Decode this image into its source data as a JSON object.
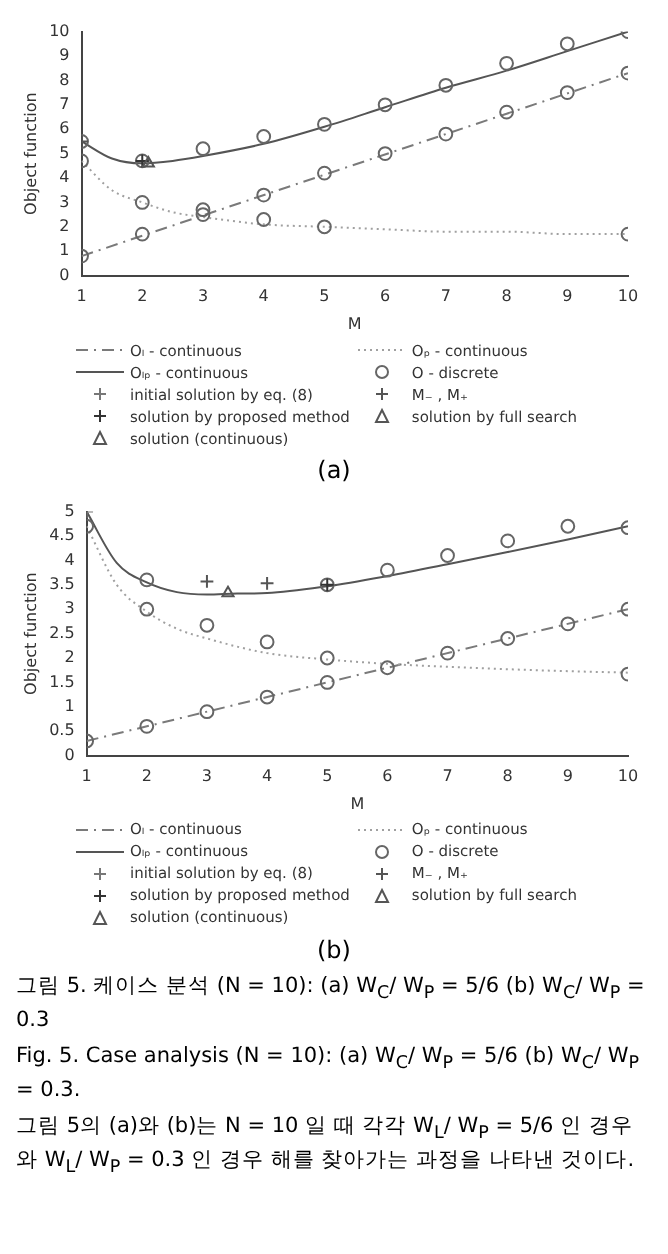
{
  "chart_data": [
    {
      "type": "line",
      "xlabel": "M",
      "ylabel": "Object function",
      "xlim": [
        1,
        10
      ],
      "xticks": [
        1,
        2,
        3,
        4,
        5,
        6,
        7,
        8,
        9,
        10
      ],
      "ylim": [
        0,
        10
      ],
      "yticks": [
        0,
        1,
        2,
        3,
        4,
        5,
        6,
        7,
        8,
        9,
        10
      ],
      "grid": false,
      "legend": "bottom",
      "series": [
        {
          "name": "Oₗ - continuous",
          "type": "line",
          "color": "#7a7a7a",
          "line_style": "dashed",
          "x": [
            1,
            10
          ],
          "values": [
            0.8,
            8.3
          ]
        },
        {
          "name": "Oₚ - continuous",
          "type": "line",
          "color": "#a0a0a0",
          "line_style": "dotted",
          "x": [
            1,
            1.5,
            2,
            2.5,
            3,
            4,
            5,
            6,
            7,
            8,
            9,
            10
          ],
          "values": [
            4.7,
            3.5,
            3.0,
            2.6,
            2.4,
            2.1,
            2.0,
            1.9,
            1.8,
            1.8,
            1.7,
            1.7
          ]
        },
        {
          "name": "Oₗₚ - continuous",
          "type": "line",
          "color": "#555555",
          "line_style": "solid",
          "x": [
            1,
            1.5,
            2,
            2.5,
            3,
            4,
            5,
            6,
            7,
            8,
            9,
            10
          ],
          "values": [
            5.5,
            4.8,
            4.6,
            4.7,
            4.9,
            5.4,
            6.1,
            6.9,
            7.7,
            8.4,
            9.2,
            10.0
          ]
        },
        {
          "name": "O - discrete",
          "type": "scatter",
          "color": "#666666",
          "marker": "circle",
          "x": [
            1,
            2,
            3,
            4,
            5,
            6,
            7,
            8,
            9,
            10,
            1,
            2,
            3,
            4,
            5,
            6,
            7,
            8,
            9,
            10,
            1,
            2,
            3,
            4,
            5,
            6,
            7,
            8,
            9,
            10
          ],
          "values": [
            0.8,
            1.7,
            2.5,
            3.3,
            4.2,
            5,
            5.8,
            6.7,
            7.5,
            8.3,
            4.7,
            3,
            2.7,
            2.3,
            2,
            null,
            null,
            null,
            null,
            1.7,
            5.5,
            4.7,
            5.2,
            5.7,
            6.2,
            7,
            7.8,
            8.7,
            9.5,
            10
          ]
        },
        {
          "name": "initial solution by eq. (8)",
          "type": "scatter",
          "color": "#777777",
          "marker": "cross"
        },
        {
          "name": "M₋ , M₊",
          "type": "scatter",
          "color": "#555555",
          "marker": "cross",
          "x": [
            1
          ],
          "values": [
            5.5
          ]
        },
        {
          "name": "solution by proposed method",
          "type": "scatter",
          "color": "#333333",
          "marker": "cross",
          "x": [
            2
          ],
          "values": [
            4.7
          ]
        },
        {
          "name": "solution by full search",
          "type": "scatter",
          "color": "#555555",
          "marker": "triangle"
        },
        {
          "name": "solution (continuous)",
          "type": "scatter",
          "color": "#555555",
          "marker": "triangle",
          "x": [
            2.1
          ],
          "values": [
            4.6
          ]
        }
      ],
      "annotations": [
        "(a)"
      ]
    },
    {
      "type": "line",
      "xlabel": "M",
      "ylabel": "Object function",
      "xlim": [
        1,
        10
      ],
      "xticks": [
        1,
        2,
        3,
        4,
        5,
        6,
        7,
        8,
        9,
        10
      ],
      "ylim": [
        0,
        5
      ],
      "yticks": [
        0,
        0.5,
        1,
        1.5,
        2,
        2.5,
        3,
        3.5,
        4,
        4.5,
        5
      ],
      "grid": false,
      "legend": "bottom",
      "series": [
        {
          "name": "Oₗ - continuous",
          "type": "line",
          "color": "#7a7a7a",
          "line_style": "dashed",
          "x": [
            1,
            10
          ],
          "values": [
            0.3,
            3.0
          ]
        },
        {
          "name": "Oₚ - continuous",
          "type": "line",
          "color": "#a0a0a0",
          "line_style": "dotted",
          "x": [
            1,
            1.5,
            2,
            2.5,
            3,
            4,
            5,
            6,
            7,
            8,
            9,
            10
          ],
          "values": [
            4.7,
            3.5,
            2.95,
            2.6,
            2.4,
            2.1,
            1.97,
            1.88,
            1.82,
            1.77,
            1.73,
            1.7
          ]
        },
        {
          "name": "Oₗₚ - continuous",
          "type": "line",
          "color": "#555555",
          "line_style": "solid",
          "x": [
            1,
            1.5,
            2,
            2.5,
            3,
            3.5,
            4,
            5,
            6,
            7,
            8,
            9,
            10
          ],
          "values": [
            5.0,
            3.95,
            3.55,
            3.35,
            3.3,
            3.32,
            3.33,
            3.47,
            3.68,
            3.92,
            4.17,
            4.43,
            4.7
          ]
        },
        {
          "name": "O - discrete",
          "type": "scatter",
          "color": "#666666",
          "marker": "circle",
          "x": [
            1,
            2,
            3,
            4,
            5,
            6,
            7,
            8,
            9,
            10,
            1,
            2,
            3,
            4,
            5,
            6,
            7,
            8,
            9,
            10,
            2,
            5,
            6,
            7,
            8,
            9,
            10
          ],
          "values": [
            0.3,
            0.6,
            0.9,
            1.2,
            1.5,
            1.8,
            2.1,
            2.4,
            2.7,
            3.0,
            4.7,
            3,
            2.67,
            2.33,
            2,
            null,
            null,
            null,
            null,
            1.67,
            3.6,
            3.5,
            3.8,
            4.1,
            4.4,
            4.7,
            4.67
          ]
        },
        {
          "name": "initial solution by eq. (8)",
          "type": "scatter",
          "color": "#777777",
          "marker": "cross",
          "x": [
            1
          ],
          "values": [
            5.0
          ]
        },
        {
          "name": "M₋ , M₊",
          "type": "scatter",
          "color": "#555555",
          "marker": "cross",
          "x": [
            3,
            4
          ],
          "values": [
            3.57,
            3.53
          ]
        },
        {
          "name": "solution by proposed method",
          "type": "scatter",
          "color": "#333333",
          "marker": "cross",
          "x": [
            5
          ],
          "values": [
            3.5
          ]
        },
        {
          "name": "solution by full search",
          "type": "scatter",
          "color": "#555555",
          "marker": "triangle"
        },
        {
          "name": "solution (continuous)",
          "type": "scatter",
          "color": "#555555",
          "marker": "triangle",
          "x": [
            3.35
          ],
          "values": [
            3.33
          ]
        }
      ],
      "annotations": [
        "(b)",
        "그림 5. 케이스 분석 (N = 10): (a) W$_{C}$/ W$_{P}$ = 5/6 (b) W$_{C}$/ W$_{P}$ = 0.3",
        "Fig. 5. Case analysis (N = 10): (a) W$_{C}$/ W$_{P}$ = 5/6 (b) W$_{C}$/ W$_{P}$ = 0.3.",
        "그림 5의 (a)와 (b)는 N = 10 일 때 각각 W$_{L}$/ W$_{P}$ = 5/6 인 경우와 W$_{L}$/ W$_{P}$ = 0.3 인 경우 해를 찾아가는 과정을 나타낸 것이다."
      ]
    }
  ]
}
